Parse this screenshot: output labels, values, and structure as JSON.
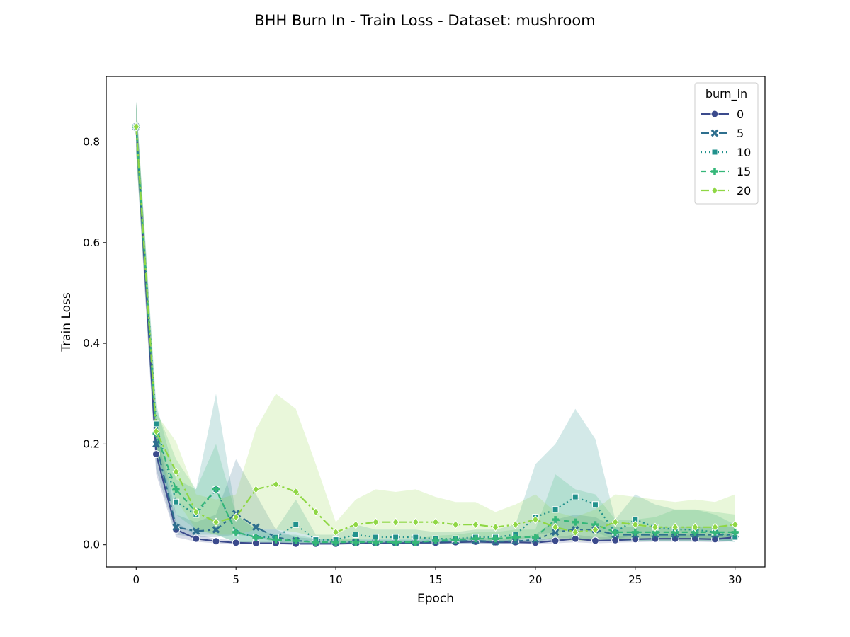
{
  "chart_data": {
    "type": "line",
    "title": "BHH Burn In - Train Loss - Dataset: mushroom",
    "xlabel": "Epoch",
    "ylabel": "Train Loss",
    "xlim": [
      -1.5,
      31.5
    ],
    "ylim": [
      -0.044,
      0.93
    ],
    "xticks": [
      0,
      5,
      10,
      15,
      20,
      25,
      30
    ],
    "yticks": [
      0.0,
      0.2,
      0.4,
      0.6,
      0.8
    ],
    "xtick_labels": [
      "0",
      "5",
      "10",
      "15",
      "20",
      "25",
      "30"
    ],
    "ytick_labels": [
      "0.0",
      "0.2",
      "0.4",
      "0.6",
      "0.8"
    ],
    "grid": false,
    "legend": {
      "title": "burn_in",
      "placement": "top-right"
    },
    "x": [
      0,
      1,
      2,
      3,
      4,
      5,
      6,
      7,
      8,
      9,
      10,
      11,
      12,
      13,
      14,
      15,
      16,
      17,
      18,
      19,
      20,
      21,
      22,
      23,
      24,
      25,
      26,
      27,
      28,
      29,
      30
    ],
    "series": [
      {
        "name": "0",
        "color": "#3b4a8c",
        "dash": "",
        "marker": "circle",
        "values": [
          0.83,
          0.18,
          0.03,
          0.012,
          0.007,
          0.004,
          0.003,
          0.003,
          0.002,
          0.002,
          0.002,
          0.003,
          0.003,
          0.003,
          0.004,
          0.004,
          0.005,
          0.006,
          0.005,
          0.005,
          0.004,
          0.008,
          0.012,
          0.008,
          0.009,
          0.011,
          0.012,
          0.012,
          0.012,
          0.011,
          0.015
        ],
        "lower": [
          0.78,
          0.14,
          0.015,
          0.006,
          0.003,
          0.001,
          0.001,
          0.001,
          0.0,
          0.0,
          0.0,
          0.001,
          0.001,
          0.001,
          0.001,
          0.001,
          0.002,
          0.002,
          0.002,
          0.002,
          0.001,
          0.003,
          0.005,
          0.003,
          0.004,
          0.005,
          0.006,
          0.006,
          0.006,
          0.005,
          0.007
        ],
        "upper": [
          0.88,
          0.23,
          0.045,
          0.02,
          0.012,
          0.008,
          0.006,
          0.006,
          0.005,
          0.005,
          0.005,
          0.006,
          0.006,
          0.006,
          0.007,
          0.008,
          0.009,
          0.01,
          0.009,
          0.01,
          0.009,
          0.015,
          0.02,
          0.015,
          0.016,
          0.018,
          0.02,
          0.02,
          0.02,
          0.018,
          0.024
        ]
      },
      {
        "name": "5",
        "color": "#2e6f8e",
        "dash": "12 5 4 5",
        "marker": "x",
        "values": [
          0.83,
          0.2,
          0.035,
          0.027,
          0.03,
          0.062,
          0.035,
          0.015,
          0.008,
          0.006,
          0.005,
          0.005,
          0.005,
          0.005,
          0.005,
          0.006,
          0.007,
          0.008,
          0.006,
          0.007,
          0.01,
          0.025,
          0.03,
          0.03,
          0.02,
          0.02,
          0.02,
          0.02,
          0.02,
          0.02,
          0.02
        ],
        "lower": [
          0.78,
          0.15,
          0.02,
          0.015,
          0.015,
          0.02,
          0.015,
          0.005,
          0.003,
          0.002,
          0.002,
          0.002,
          0.002,
          0.002,
          0.002,
          0.002,
          0.003,
          0.003,
          0.002,
          0.003,
          0.004,
          0.01,
          0.012,
          0.012,
          0.008,
          0.008,
          0.008,
          0.008,
          0.008,
          0.008,
          0.008
        ],
        "upper": [
          0.88,
          0.25,
          0.06,
          0.045,
          0.06,
          0.17,
          0.1,
          0.03,
          0.015,
          0.012,
          0.01,
          0.01,
          0.01,
          0.01,
          0.01,
          0.012,
          0.013,
          0.015,
          0.012,
          0.014,
          0.02,
          0.05,
          0.06,
          0.055,
          0.035,
          0.035,
          0.035,
          0.035,
          0.035,
          0.035,
          0.035
        ]
      },
      {
        "name": "10",
        "color": "#21918c",
        "dash": "2 4",
        "marker": "square",
        "values": [
          0.83,
          0.24,
          0.085,
          0.06,
          0.11,
          0.025,
          0.015,
          0.015,
          0.04,
          0.01,
          0.01,
          0.02,
          0.015,
          0.015,
          0.015,
          0.012,
          0.012,
          0.015,
          0.015,
          0.02,
          0.055,
          0.07,
          0.095,
          0.08,
          0.025,
          0.05,
          0.035,
          0.03,
          0.03,
          0.025,
          0.015
        ],
        "lower": [
          0.78,
          0.19,
          0.04,
          0.02,
          0.02,
          0.005,
          0.005,
          0.005,
          0.005,
          0.003,
          0.003,
          0.005,
          0.005,
          0.005,
          0.005,
          0.004,
          0.004,
          0.005,
          0.005,
          0.007,
          0.02,
          0.025,
          0.03,
          0.025,
          0.01,
          0.02,
          0.015,
          0.012,
          0.012,
          0.01,
          0.005
        ],
        "upper": [
          0.88,
          0.28,
          0.13,
          0.11,
          0.3,
          0.06,
          0.03,
          0.03,
          0.09,
          0.02,
          0.02,
          0.04,
          0.03,
          0.03,
          0.03,
          0.025,
          0.025,
          0.03,
          0.03,
          0.04,
          0.16,
          0.2,
          0.27,
          0.21,
          0.05,
          0.1,
          0.08,
          0.07,
          0.07,
          0.06,
          0.04
        ]
      },
      {
        "name": "15",
        "color": "#35b779",
        "dash": "8 5",
        "marker": "plus",
        "values": [
          0.83,
          0.22,
          0.11,
          0.065,
          0.11,
          0.025,
          0.015,
          0.01,
          0.008,
          0.005,
          0.005,
          0.005,
          0.005,
          0.005,
          0.005,
          0.008,
          0.01,
          0.012,
          0.012,
          0.015,
          0.015,
          0.05,
          0.045,
          0.04,
          0.025,
          0.025,
          0.025,
          0.025,
          0.025,
          0.025,
          0.025
        ],
        "lower": [
          0.78,
          0.17,
          0.06,
          0.03,
          0.02,
          0.005,
          0.005,
          0.003,
          0.002,
          0.001,
          0.001,
          0.001,
          0.001,
          0.001,
          0.001,
          0.002,
          0.003,
          0.004,
          0.004,
          0.005,
          0.005,
          0.015,
          0.012,
          0.01,
          0.008,
          0.008,
          0.008,
          0.008,
          0.008,
          0.008,
          0.008
        ],
        "upper": [
          0.88,
          0.27,
          0.17,
          0.11,
          0.2,
          0.06,
          0.03,
          0.02,
          0.02,
          0.012,
          0.012,
          0.012,
          0.012,
          0.012,
          0.012,
          0.018,
          0.02,
          0.025,
          0.025,
          0.03,
          0.03,
          0.14,
          0.11,
          0.1,
          0.05,
          0.05,
          0.055,
          0.07,
          0.07,
          0.065,
          0.06
        ]
      },
      {
        "name": "20",
        "color": "#8fd744",
        "dash": "12 4 3 4",
        "marker": "diamond",
        "values": [
          0.83,
          0.225,
          0.145,
          0.065,
          0.045,
          0.055,
          0.11,
          0.12,
          0.105,
          0.065,
          0.025,
          0.04,
          0.045,
          0.045,
          0.045,
          0.045,
          0.04,
          0.04,
          0.035,
          0.04,
          0.05,
          0.035,
          0.025,
          0.03,
          0.045,
          0.04,
          0.035,
          0.035,
          0.035,
          0.035,
          0.04
        ],
        "lower": [
          0.78,
          0.18,
          0.09,
          0.03,
          0.02,
          0.02,
          0.03,
          0.03,
          0.025,
          0.015,
          0.005,
          0.01,
          0.012,
          0.012,
          0.012,
          0.012,
          0.01,
          0.01,
          0.008,
          0.01,
          0.015,
          0.01,
          0.008,
          0.008,
          0.012,
          0.012,
          0.01,
          0.01,
          0.01,
          0.01,
          0.012
        ],
        "upper": [
          0.88,
          0.26,
          0.205,
          0.1,
          0.09,
          0.1,
          0.23,
          0.3,
          0.27,
          0.16,
          0.045,
          0.09,
          0.11,
          0.105,
          0.11,
          0.095,
          0.085,
          0.085,
          0.065,
          0.08,
          0.1,
          0.065,
          0.055,
          0.07,
          0.1,
          0.095,
          0.09,
          0.085,
          0.09,
          0.085,
          0.1
        ]
      }
    ]
  }
}
